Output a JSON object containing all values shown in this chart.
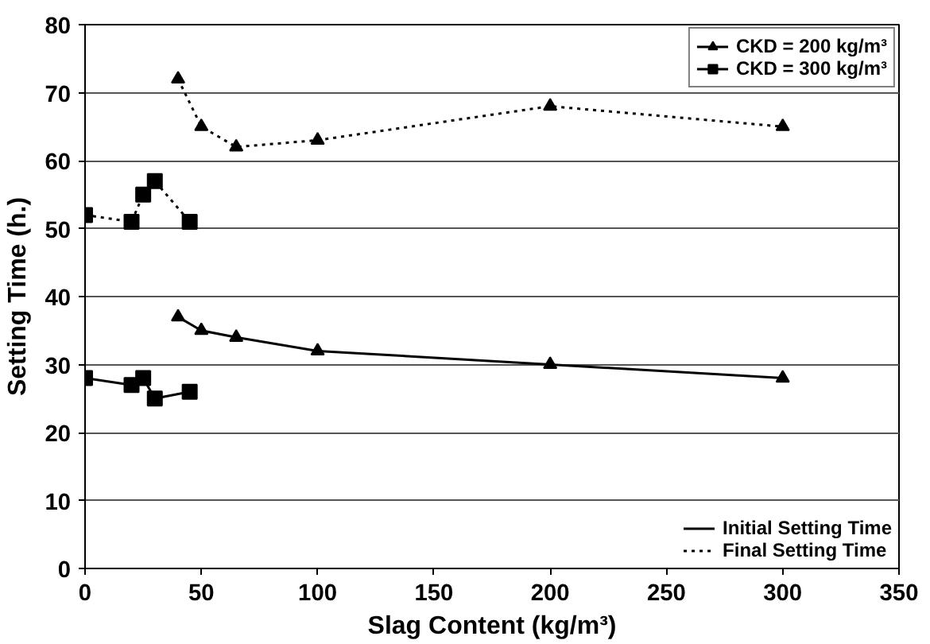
{
  "chart_data": {
    "type": "line",
    "xlabel": "Slag Content (kg/m³)",
    "ylabel": "Setting Time (h.)",
    "xlim": [
      0,
      350
    ],
    "xticks": [
      0,
      50,
      100,
      150,
      200,
      250,
      300,
      350
    ],
    "ylim": [
      0,
      80
    ],
    "yticks": [
      0,
      10,
      20,
      30,
      40,
      50,
      60,
      70,
      80
    ],
    "grid": "y",
    "legend": "top right",
    "series": [
      {
        "name": "CKD = 200 kg/m³",
        "color": "#000000",
        "marker": "triangle",
        "line_style": "solid",
        "x": [
          40,
          50,
          65,
          100,
          200,
          300
        ],
        "values": [
          37,
          35,
          34,
          32,
          30,
          28
        ]
      },
      {
        "color": "#000000",
        "marker": "triangle",
        "line_style": "dotted",
        "x": [
          40,
          50,
          65,
          100,
          200,
          300
        ],
        "values": [
          72,
          65,
          62,
          63,
          68,
          65
        ]
      },
      {
        "name": "CKD = 300 kg/m³",
        "color": "#000000",
        "marker": "square",
        "line_style": "solid",
        "x": [
          0,
          20,
          25,
          30,
          45
        ],
        "values": [
          28,
          27,
          28,
          25,
          26
        ]
      },
      {
        "color": "#000000",
        "marker": "square",
        "line_style": "dotted",
        "x": [
          0,
          20,
          25,
          30,
          45
        ],
        "values": [
          52,
          51,
          55,
          57,
          51
        ]
      }
    ],
    "annotations": [
      "Initial Setting Time",
      "Final Setting Time"
    ]
  }
}
